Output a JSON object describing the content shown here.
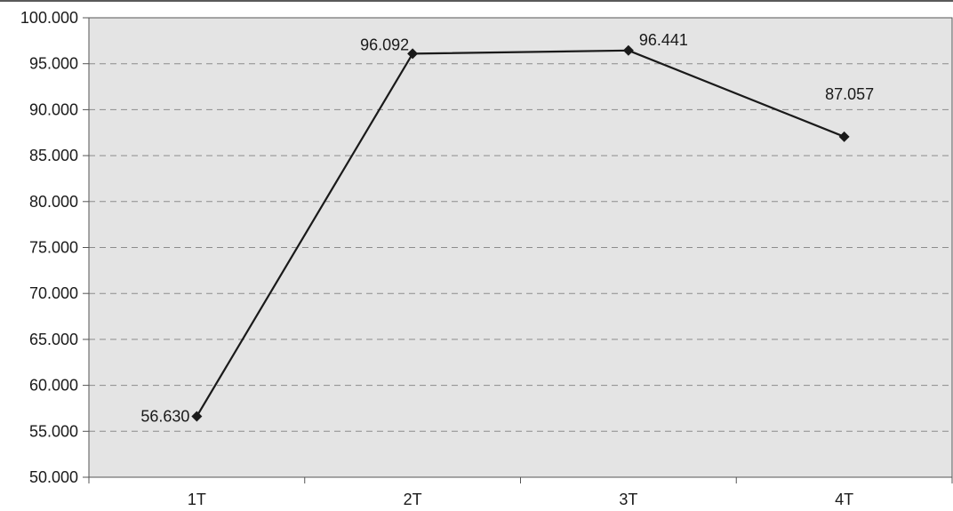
{
  "chart_data": {
    "type": "line",
    "categories": [
      "1T",
      "2T",
      "3T",
      "4T"
    ],
    "series": [
      {
        "values": [
          56.63,
          96.092,
          96.441,
          87.057
        ],
        "labels": [
          "56.630",
          "96.092",
          "96.441",
          "87.057"
        ]
      }
    ],
    "ylim": [
      50,
      100
    ],
    "y_ticks": [
      50,
      55,
      60,
      65,
      70,
      75,
      80,
      85,
      90,
      95,
      100
    ],
    "y_tick_labels": [
      "50.000",
      "55.000",
      "60.000",
      "65.000",
      "70.000",
      "75.000",
      "80.000",
      "85.000",
      "90.000",
      "95.000",
      "100.000"
    ],
    "grid": true,
    "grid_style": "dashed",
    "marker": "diamond",
    "colors": {
      "plot_background": "#e4e4e4",
      "line": "#1a1a1a",
      "grid": "#8c8c8c",
      "axis": "#555555"
    }
  }
}
